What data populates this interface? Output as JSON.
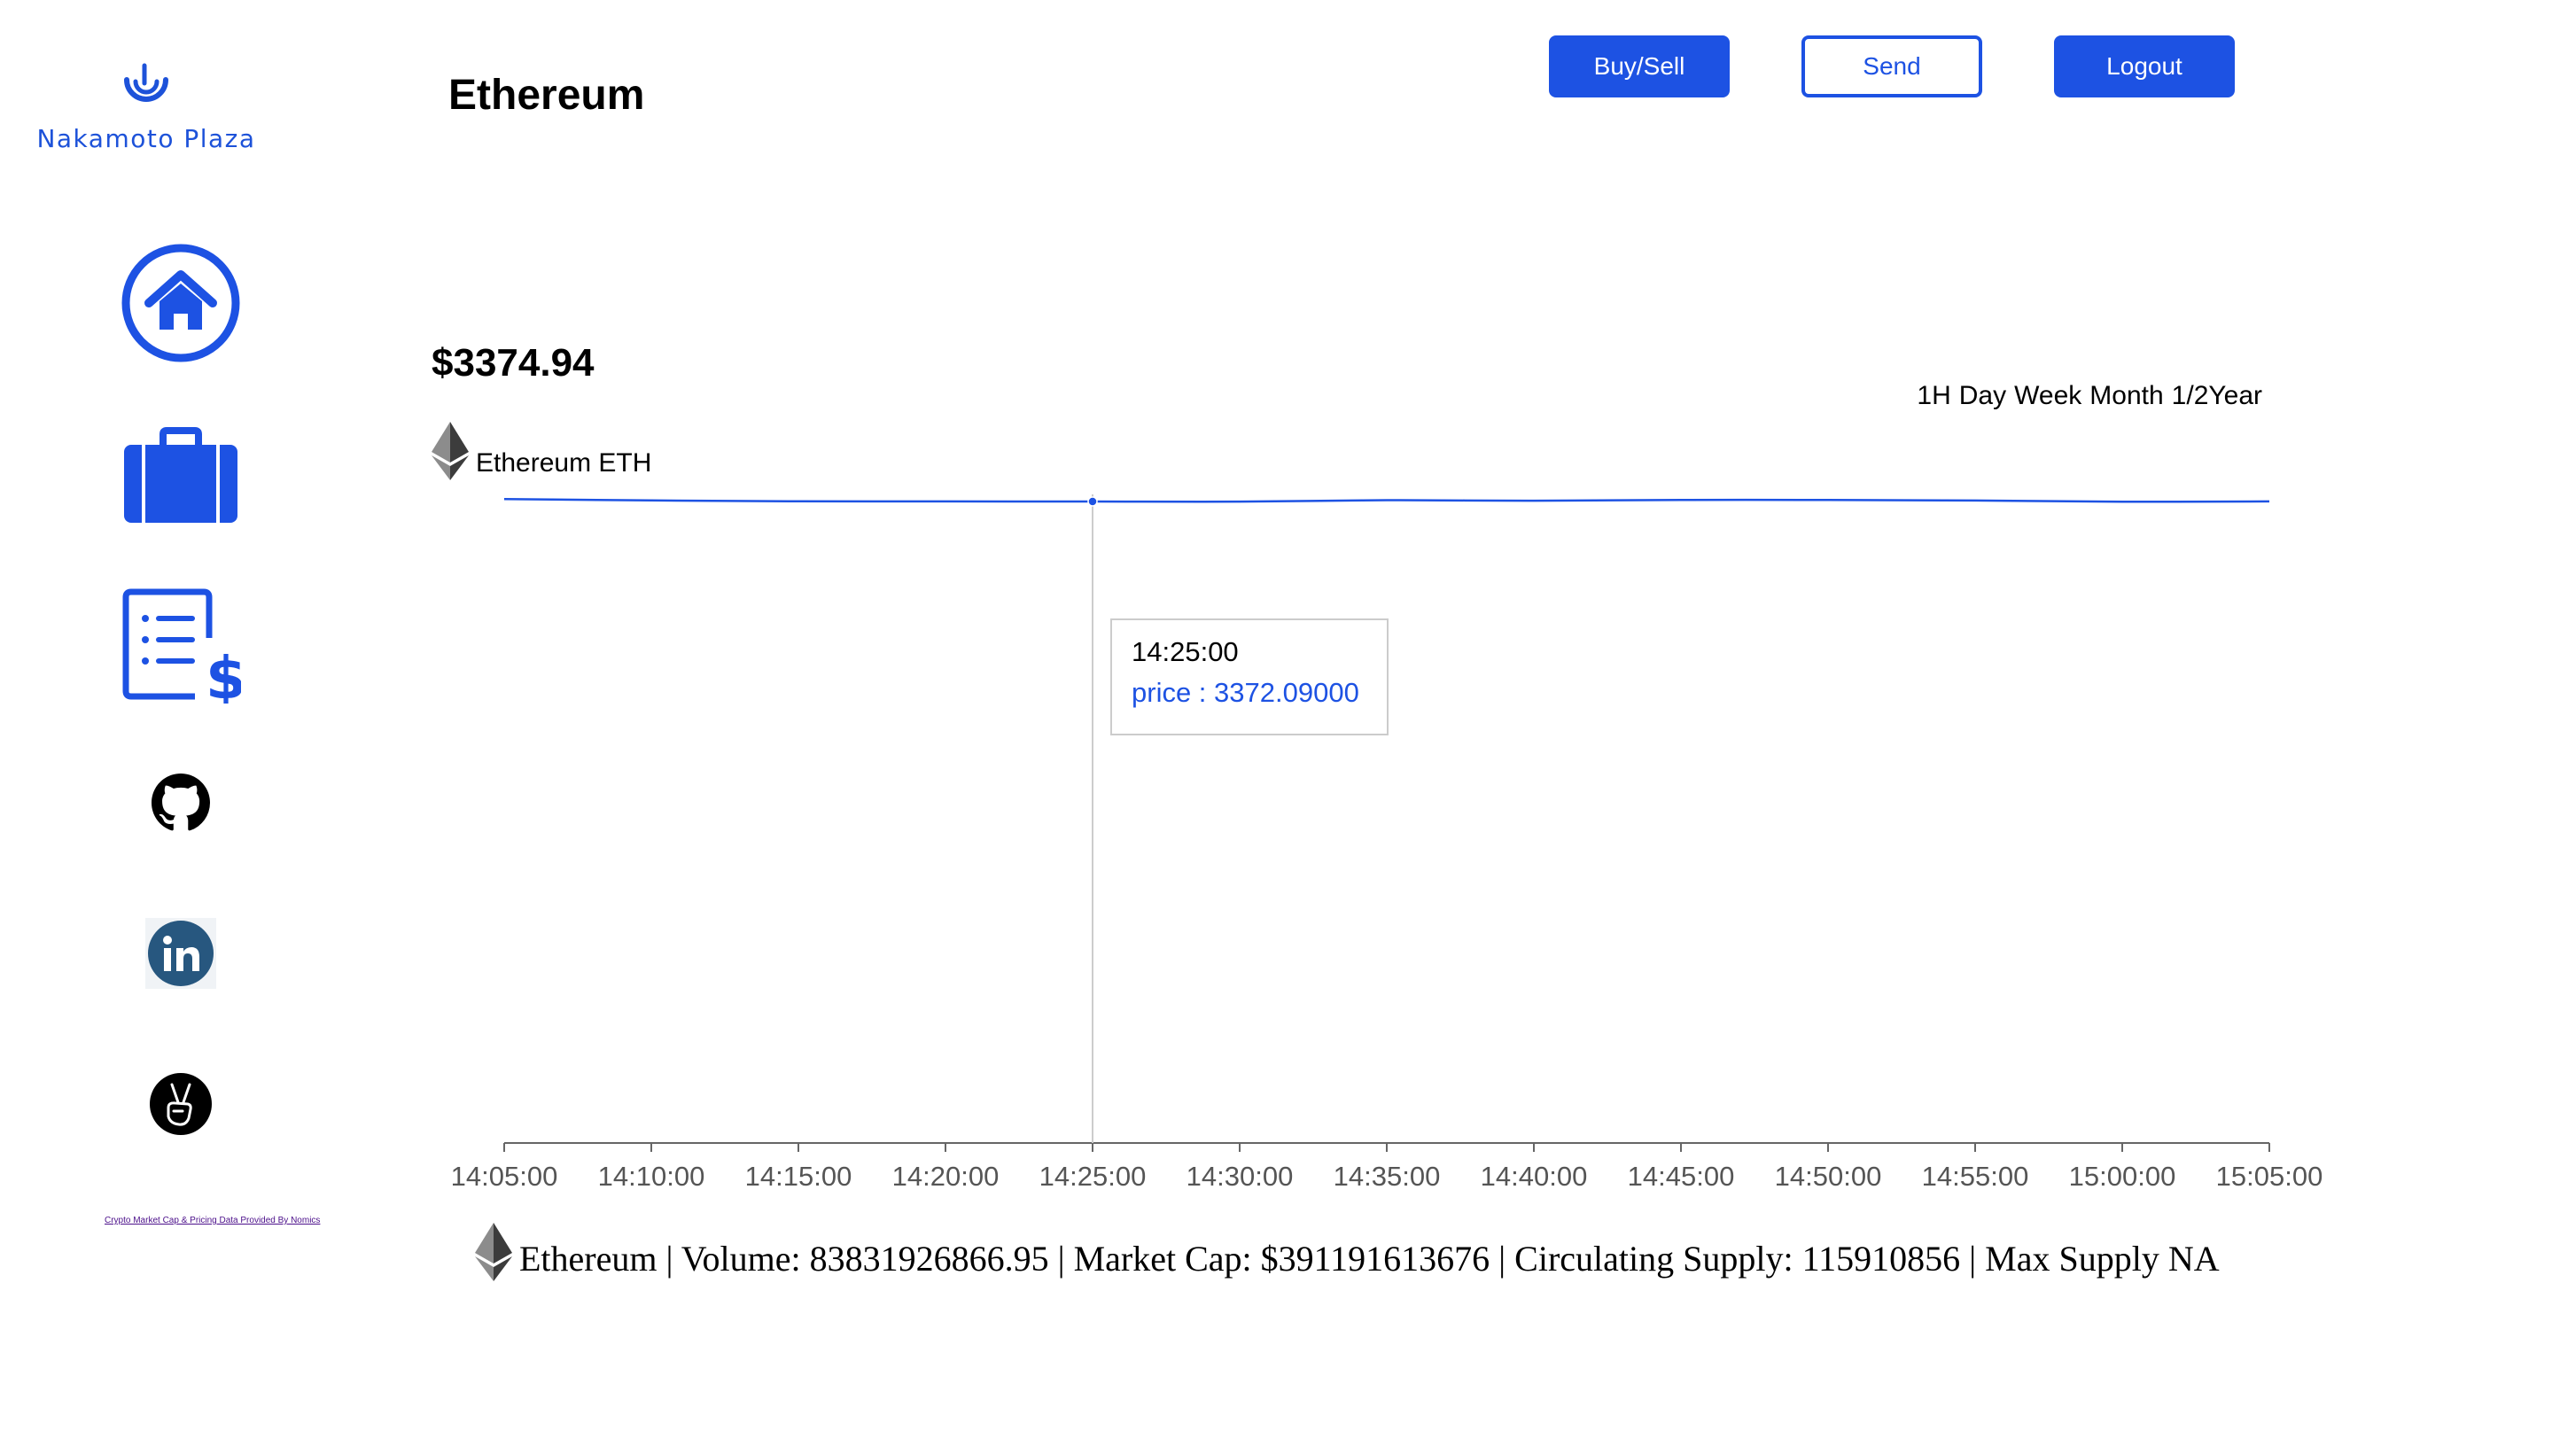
{
  "brand": {
    "name": "Nakamoto Plaza",
    "color": "#1d52d9"
  },
  "sidebar": {
    "items": [
      {
        "icon": "home-icon"
      },
      {
        "icon": "briefcase-icon"
      },
      {
        "icon": "invoice-icon"
      },
      {
        "icon": "github-icon"
      },
      {
        "icon": "linkedin-icon"
      },
      {
        "icon": "angellist-icon"
      }
    ],
    "attribution": "Crypto Market Cap & Pricing Data Provided By Nomics"
  },
  "header": {
    "title": "Ethereum",
    "buttons": {
      "buy_sell": "Buy/Sell",
      "send": "Send",
      "logout": "Logout"
    }
  },
  "price": "$3374.94",
  "coin": {
    "label": "Ethereum ETH",
    "icon": "ethereum-icon"
  },
  "ranges": [
    "1H",
    "Day",
    "Week",
    "Month",
    "1/2Year"
  ],
  "chart_data": {
    "type": "line",
    "x": [
      "14:05:00",
      "14:10:00",
      "14:15:00",
      "14:20:00",
      "14:25:00",
      "14:30:00",
      "14:35:00",
      "14:40:00",
      "14:45:00",
      "14:50:00",
      "14:55:00",
      "15:00:00",
      "15:05:00"
    ],
    "series": [
      {
        "values": [
          3385.0,
          3377.6,
          3373.0,
          3372.5,
          3372.09,
          3371.3,
          3379.0,
          3376.0,
          3380.3,
          3380.2,
          3377.4,
          3370.6,
          3372.5
        ]
      }
    ],
    "ylim": [
      0,
      3400
    ],
    "line_color": "#1d52e3",
    "grid": false,
    "tooltip": {
      "time": "14:25:00",
      "label": "price : 3372.09000"
    }
  },
  "stats": {
    "text": "Ethereum | Volume: 83831926866.95 | Market Cap: $391191613676 | Circulating Supply: 115910856 | Max Supply NA"
  }
}
